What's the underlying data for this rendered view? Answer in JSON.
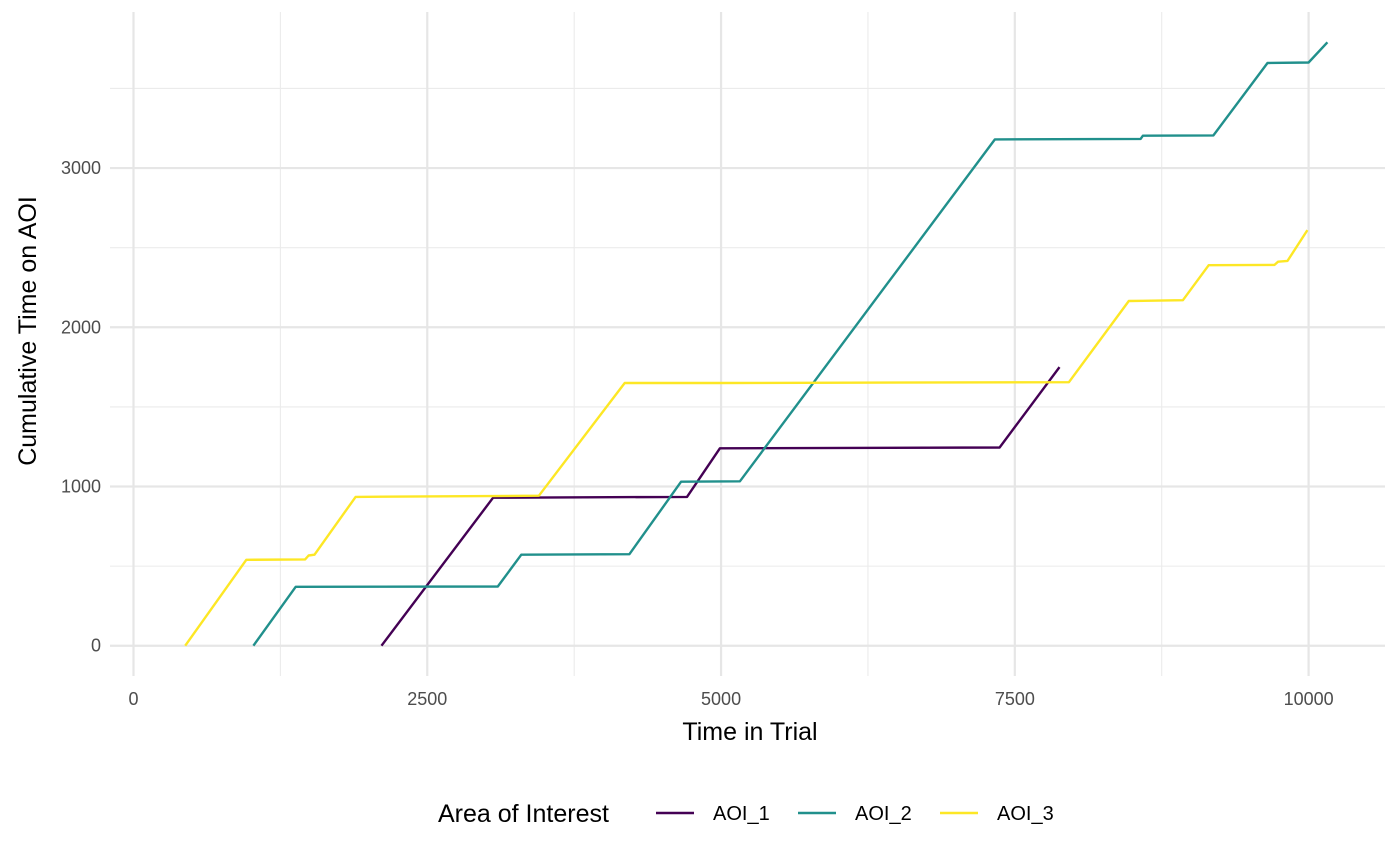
{
  "chart_data": {
    "type": "line",
    "title": "",
    "xlabel": "Time in Trial",
    "ylabel": "Cumulative Time on AOI",
    "xlim": [
      -200,
      10650
    ],
    "ylim": [
      -190,
      3980
    ],
    "x_ticks": [
      0,
      2500,
      5000,
      7500,
      10000
    ],
    "x_tick_labels": [
      "0",
      "2500",
      "5000",
      "7500",
      "10000"
    ],
    "x_minor_ticks": [
      1250,
      3750,
      6250,
      8750
    ],
    "y_ticks": [
      0,
      1000,
      2000,
      3000
    ],
    "y_tick_labels": [
      "0",
      "1000",
      "2000",
      "3000"
    ],
    "y_minor_ticks": [
      500,
      1500,
      2500,
      3500
    ],
    "grid": true,
    "legend": {
      "title": "Area of Interest",
      "position": "bottom"
    },
    "series": [
      {
        "name": "AOI_1",
        "color": "#440154",
        "points": [
          [
            2110,
            0
          ],
          [
            3060,
            930
          ],
          [
            4710,
            935
          ],
          [
            4990,
            1240
          ],
          [
            7370,
            1245
          ],
          [
            7880,
            1750
          ]
        ]
      },
      {
        "name": "AOI_2",
        "color": "#21908C",
        "points": [
          [
            1020,
            0
          ],
          [
            1380,
            370
          ],
          [
            3100,
            372
          ],
          [
            3300,
            572
          ],
          [
            4220,
            575
          ],
          [
            4660,
            1030
          ],
          [
            5160,
            1033
          ],
          [
            7330,
            3180
          ],
          [
            8570,
            3183
          ],
          [
            8590,
            3203
          ],
          [
            9190,
            3205
          ],
          [
            9650,
            3660
          ],
          [
            10000,
            3663
          ],
          [
            10160,
            3790
          ]
        ]
      },
      {
        "name": "AOI_3",
        "color": "#FDE725",
        "points": [
          [
            440,
            0
          ],
          [
            960,
            540
          ],
          [
            1460,
            542
          ],
          [
            1490,
            567
          ],
          [
            1540,
            572
          ],
          [
            1890,
            935
          ],
          [
            3450,
            942
          ],
          [
            4180,
            1650
          ],
          [
            4980,
            1650
          ],
          [
            7960,
            1655
          ],
          [
            8470,
            2165
          ],
          [
            8930,
            2170
          ],
          [
            9150,
            2390
          ],
          [
            9710,
            2392
          ],
          [
            9740,
            2412
          ],
          [
            9820,
            2417
          ],
          [
            9990,
            2610
          ]
        ]
      }
    ]
  }
}
